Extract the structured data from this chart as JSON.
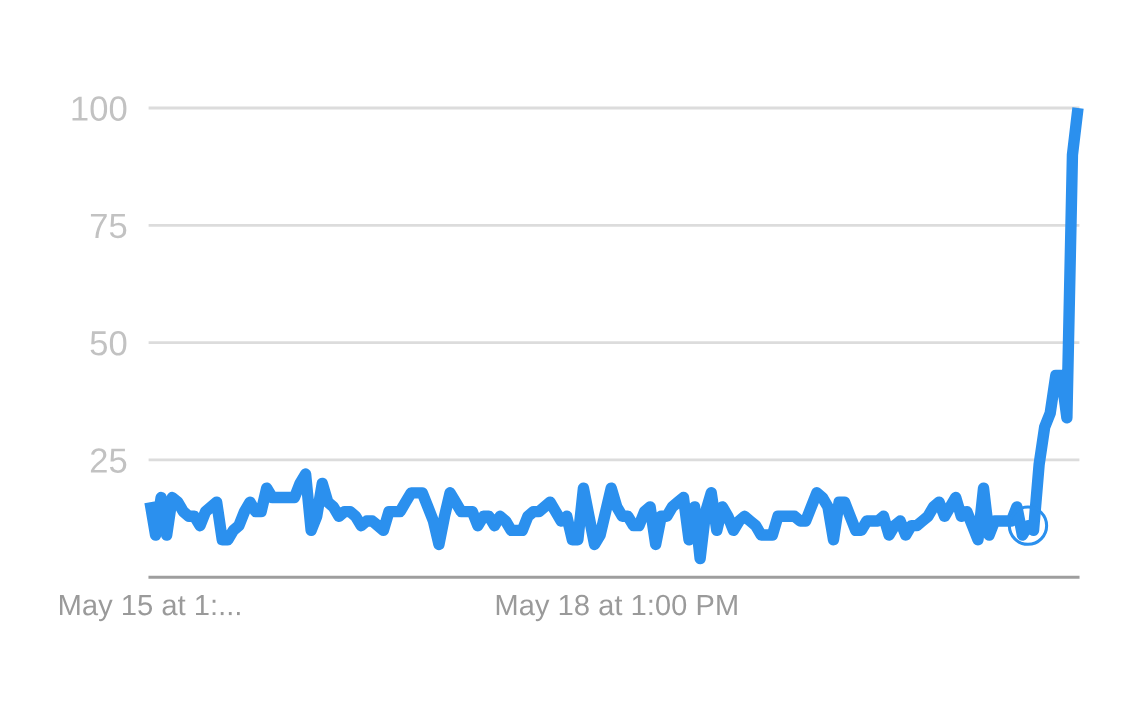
{
  "chart_data": {
    "type": "line",
    "categories": [
      "May 15 at 1:...",
      null,
      null,
      null,
      null,
      null,
      null,
      null,
      null,
      null,
      null,
      null,
      null,
      null,
      null,
      null,
      null,
      null,
      null,
      null,
      null,
      null,
      null,
      null,
      null,
      null,
      null,
      null,
      null,
      null,
      null,
      null,
      null,
      null,
      null,
      null,
      null,
      null,
      null,
      null,
      null,
      null,
      null,
      null,
      null,
      null,
      null,
      null,
      null,
      null,
      null,
      null,
      null,
      null,
      null,
      null,
      null,
      null,
      null,
      null,
      null,
      null,
      null,
      null,
      null,
      null,
      null,
      null,
      null,
      null,
      null,
      null,
      null,
      null,
      null,
      null,
      null,
      null,
      null,
      null,
      null,
      null,
      null,
      null,
      "May 18 at 1:00 PM",
      null,
      null,
      null,
      null,
      null,
      null,
      null,
      null,
      null,
      null,
      null,
      null,
      null,
      null,
      null,
      null,
      null,
      null,
      null,
      null,
      null,
      null,
      null,
      null,
      null,
      null,
      null,
      null,
      null,
      null,
      null,
      null,
      null,
      null,
      null,
      null,
      null,
      null,
      null,
      null,
      null,
      null,
      null,
      null,
      null,
      null,
      null,
      null,
      null,
      null,
      null,
      null,
      null,
      null,
      null,
      null,
      null,
      null,
      null,
      null,
      null,
      null,
      null,
      null,
      null,
      null,
      null,
      null,
      null,
      null,
      null,
      null,
      null,
      null,
      null,
      null,
      null,
      null,
      null,
      null,
      null,
      null,
      null
    ],
    "ylim": [
      0,
      100
    ],
    "yticks": [
      25,
      50,
      75,
      100
    ],
    "grid": "y",
    "series": [
      {
        "color": "#2b90ee",
        "line_style": "solid",
        "values": [
          16,
          9,
          17,
          9,
          17,
          16,
          14,
          13,
          13,
          11,
          14,
          15,
          16,
          8,
          8,
          10,
          11,
          14,
          16,
          14,
          14,
          19,
          17,
          17,
          17,
          17,
          17,
          20,
          22,
          10,
          13,
          20,
          16,
          15,
          13,
          14,
          14,
          13,
          11,
          12,
          12,
          11,
          10,
          14,
          14,
          14,
          16,
          18,
          18,
          18,
          15,
          12,
          7,
          13,
          18,
          16,
          14,
          14,
          14,
          11,
          13,
          13,
          11,
          13,
          12,
          10,
          10,
          10,
          13,
          14,
          14,
          15,
          16,
          14,
          12,
          13,
          8,
          8,
          19,
          13,
          7,
          9,
          14,
          19,
          15,
          13,
          13,
          11,
          11,
          14,
          15,
          7,
          13,
          13,
          15,
          16,
          17,
          8,
          15,
          4,
          14,
          18,
          10,
          15,
          13,
          10,
          12,
          13,
          12,
          11,
          9,
          9,
          9,
          13,
          13,
          13,
          13,
          12,
          12,
          15,
          18,
          17,
          15,
          8,
          16,
          16,
          13,
          10,
          10,
          12,
          12,
          12,
          13,
          9,
          11,
          12,
          9,
          11,
          11,
          12,
          13,
          15,
          16,
          13,
          15,
          17,
          13,
          14,
          11,
          8,
          19,
          9,
          12,
          12,
          12,
          12,
          15,
          9,
          11,
          10,
          24,
          32,
          35,
          43,
          43,
          34,
          90,
          100
        ]
      },
      {
        "type": "scatter",
        "color": "#2b90ee",
        "marker": "circle",
        "values": [
          null,
          null,
          null,
          null,
          null,
          null,
          null,
          null,
          null,
          null,
          null,
          null,
          null,
          null,
          null,
          null,
          null,
          null,
          null,
          null,
          null,
          null,
          null,
          null,
          null,
          null,
          null,
          null,
          null,
          null,
          null,
          null,
          null,
          null,
          null,
          null,
          null,
          null,
          null,
          null,
          null,
          null,
          null,
          null,
          null,
          null,
          null,
          null,
          null,
          null,
          null,
          null,
          null,
          null,
          null,
          null,
          null,
          null,
          null,
          null,
          null,
          null,
          null,
          null,
          null,
          null,
          null,
          null,
          null,
          null,
          null,
          null,
          null,
          null,
          null,
          null,
          null,
          null,
          null,
          null,
          null,
          null,
          null,
          null,
          null,
          null,
          null,
          null,
          null,
          null,
          null,
          null,
          null,
          null,
          null,
          null,
          null,
          null,
          null,
          null,
          null,
          null,
          null,
          null,
          null,
          null,
          null,
          null,
          null,
          null,
          null,
          null,
          null,
          null,
          null,
          null,
          null,
          null,
          null,
          null,
          null,
          null,
          null,
          null,
          null,
          null,
          null,
          null,
          null,
          null,
          null,
          null,
          null,
          null,
          null,
          null,
          null,
          null,
          null,
          null,
          null,
          null,
          null,
          null,
          null,
          null,
          null,
          null,
          null,
          null,
          null,
          null,
          null,
          null,
          null,
          null,
          null,
          null,
          11,
          null,
          null,
          null,
          null,
          null,
          null,
          null,
          null,
          null
        ]
      }
    ]
  }
}
